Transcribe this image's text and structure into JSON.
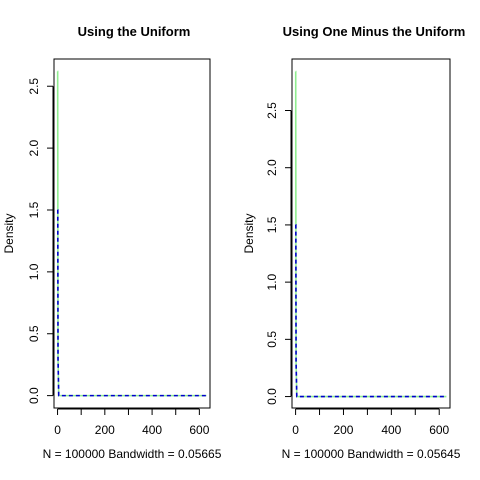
{
  "chart_data": [
    {
      "type": "line",
      "title": "Using the Uniform",
      "xlabel": "N = 100000   Bandwidth = 0.05665",
      "ylabel": "Density",
      "xlim": [
        -15,
        645
      ],
      "ylim": [
        -0.1,
        2.72
      ],
      "xticks": [
        0,
        200,
        400,
        600
      ],
      "xticklabels": [
        "0",
        "200",
        "400",
        "600"
      ],
      "xminor": [
        100,
        300,
        500
      ],
      "yticks": [
        0.0,
        0.5,
        1.0,
        1.5,
        2.0,
        2.5
      ],
      "yticklabels": [
        "0.0",
        "0.5",
        "1.0",
        "1.5",
        "2.0",
        "2.5"
      ],
      "series": [
        {
          "color": "#90ee90",
          "style": "solid",
          "x": [
            0,
            0.5,
            1,
            2,
            5,
            630
          ],
          "y": [
            2.62,
            2.62,
            2.0,
            0.3,
            0.0,
            0.0
          ]
        },
        {
          "color": "#0000cd",
          "style": "dashed",
          "x": [
            0,
            1,
            2,
            5,
            630
          ],
          "y": [
            1.5,
            1.5,
            0.3,
            0.0,
            0.0
          ]
        }
      ]
    },
    {
      "type": "line",
      "title": "Using One Minus the Uniform",
      "xlabel": "N = 100000   Bandwidth = 0.05645",
      "ylabel": "Density",
      "xlim": [
        -15,
        645
      ],
      "ylim": [
        -0.1,
        2.95
      ],
      "xticks": [
        0,
        200,
        400,
        600
      ],
      "xticklabels": [
        "0",
        "200",
        "400",
        "600"
      ],
      "xminor": [
        100,
        300,
        500
      ],
      "yticks": [
        0.0,
        0.5,
        1.0,
        1.5,
        2.0,
        2.5
      ],
      "yticklabels": [
        "0.0",
        "0.5",
        "1.0",
        "1.5",
        "2.0",
        "2.5"
      ],
      "series": [
        {
          "color": "#90ee90",
          "style": "solid",
          "x": [
            0,
            0.5,
            1,
            2,
            5,
            630
          ],
          "y": [
            2.84,
            2.84,
            2.0,
            0.3,
            0.0,
            0.0
          ]
        },
        {
          "color": "#0000cd",
          "style": "dashed",
          "x": [
            0,
            1,
            2,
            5,
            630
          ],
          "y": [
            1.5,
            1.5,
            0.3,
            0.0,
            0.0
          ]
        }
      ]
    }
  ]
}
